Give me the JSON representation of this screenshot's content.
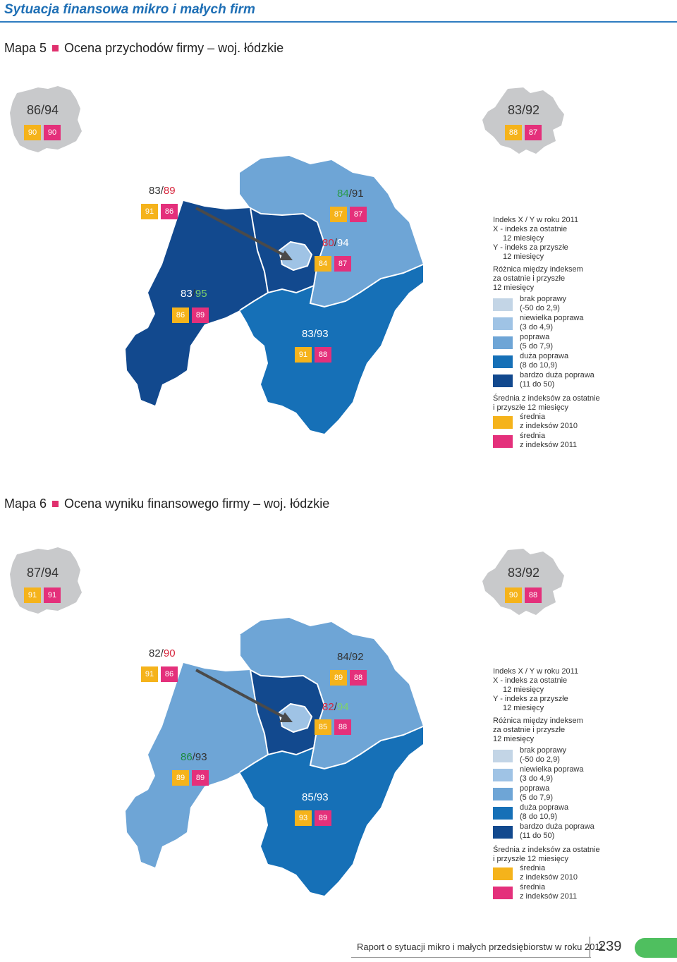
{
  "header": {
    "title": "Sytuacja finansowa mikro i małych firm"
  },
  "colors": {
    "brak": "#c3d5e6",
    "niewielka": "#9fc3e5",
    "poprawa": "#6ea5d6",
    "duza": "#1670b7",
    "bardzo_duza": "#12498e",
    "avg2010": "#f5b31b",
    "avg2011": "#e4307b",
    "poland": "#c8c9cb"
  },
  "map5": {
    "number": "Mapa 5",
    "title": "Ocena przychodów firmy – woj. łódzkie",
    "poland": {
      "ratio": "86/94",
      "b2010": "90",
      "b2011": "90"
    },
    "voivodeship": {
      "ratio": "83/92",
      "b2010": "88",
      "b2011": "87"
    },
    "regions": [
      {
        "x": "83",
        "y": "89",
        "b2010": "91",
        "b2011": "86"
      },
      {
        "x": "84",
        "y": "91",
        "b2010": "87",
        "b2011": "87"
      },
      {
        "x": "80",
        "y": "94",
        "b2010": "84",
        "b2011": "87"
      },
      {
        "x": "83",
        "y": "95",
        "b2010": "86",
        "b2011": "89"
      },
      {
        "x": "83",
        "y": "93",
        "b2010": "91",
        "b2011": "88"
      }
    ]
  },
  "map6": {
    "number": "Mapa 6",
    "title": "Ocena wyniku finansowego firmy – woj. łódzkie",
    "poland": {
      "ratio": "87/94",
      "b2010": "91",
      "b2011": "91"
    },
    "voivodeship": {
      "ratio": "83/92",
      "b2010": "90",
      "b2011": "88"
    },
    "regions": [
      {
        "x": "82",
        "y": "90",
        "b2010": "91",
        "b2011": "86"
      },
      {
        "x": "84",
        "y": "92",
        "b2010": "89",
        "b2011": "88"
      },
      {
        "x": "82",
        "y": "94",
        "b2010": "85",
        "b2011": "88"
      },
      {
        "x": "86",
        "y": "93",
        "b2010": "89",
        "b2011": "89"
      },
      {
        "x": "85",
        "y": "93",
        "b2010": "93",
        "b2011": "89"
      }
    ]
  },
  "legend": {
    "index_title": "Indeks X / Y w roku 2011",
    "x_line1": "X - indeks za ostatnie",
    "x_line2": "12 miesięcy",
    "y_line1": "Y - indeks za przyszłe",
    "y_line2": "12 miesięcy",
    "diff_line1": "Różnica między indeksem",
    "diff_line2": "za ostatnie i przyszłe",
    "diff_line3": "12 miesięcy",
    "classes": [
      {
        "l1": "brak poprawy",
        "l2": "(-50 do 2,9)"
      },
      {
        "l1": "niewielka poprawa",
        "l2": "(3 do 4,9)"
      },
      {
        "l1": "poprawa",
        "l2": "(5 do 7,9)"
      },
      {
        "l1": "duża poprawa",
        "l2": "(8 do 10,9)"
      },
      {
        "l1": "bardzo duża poprawa",
        "l2": "(11 do 50)"
      }
    ],
    "avg_line1": "Średnia z indeksów za ostatnie",
    "avg_line2": "i przyszłe 12 miesięcy",
    "avg2010_l1": "średnia",
    "avg2010_l2": "z indeksów 2010",
    "avg2011_l1": "średnia",
    "avg2011_l2": "z indeksów 2011"
  },
  "footer": {
    "text": "Raport o sytuacji mikro i małych przedsiębiorstw w roku 2011",
    "page": "239"
  }
}
